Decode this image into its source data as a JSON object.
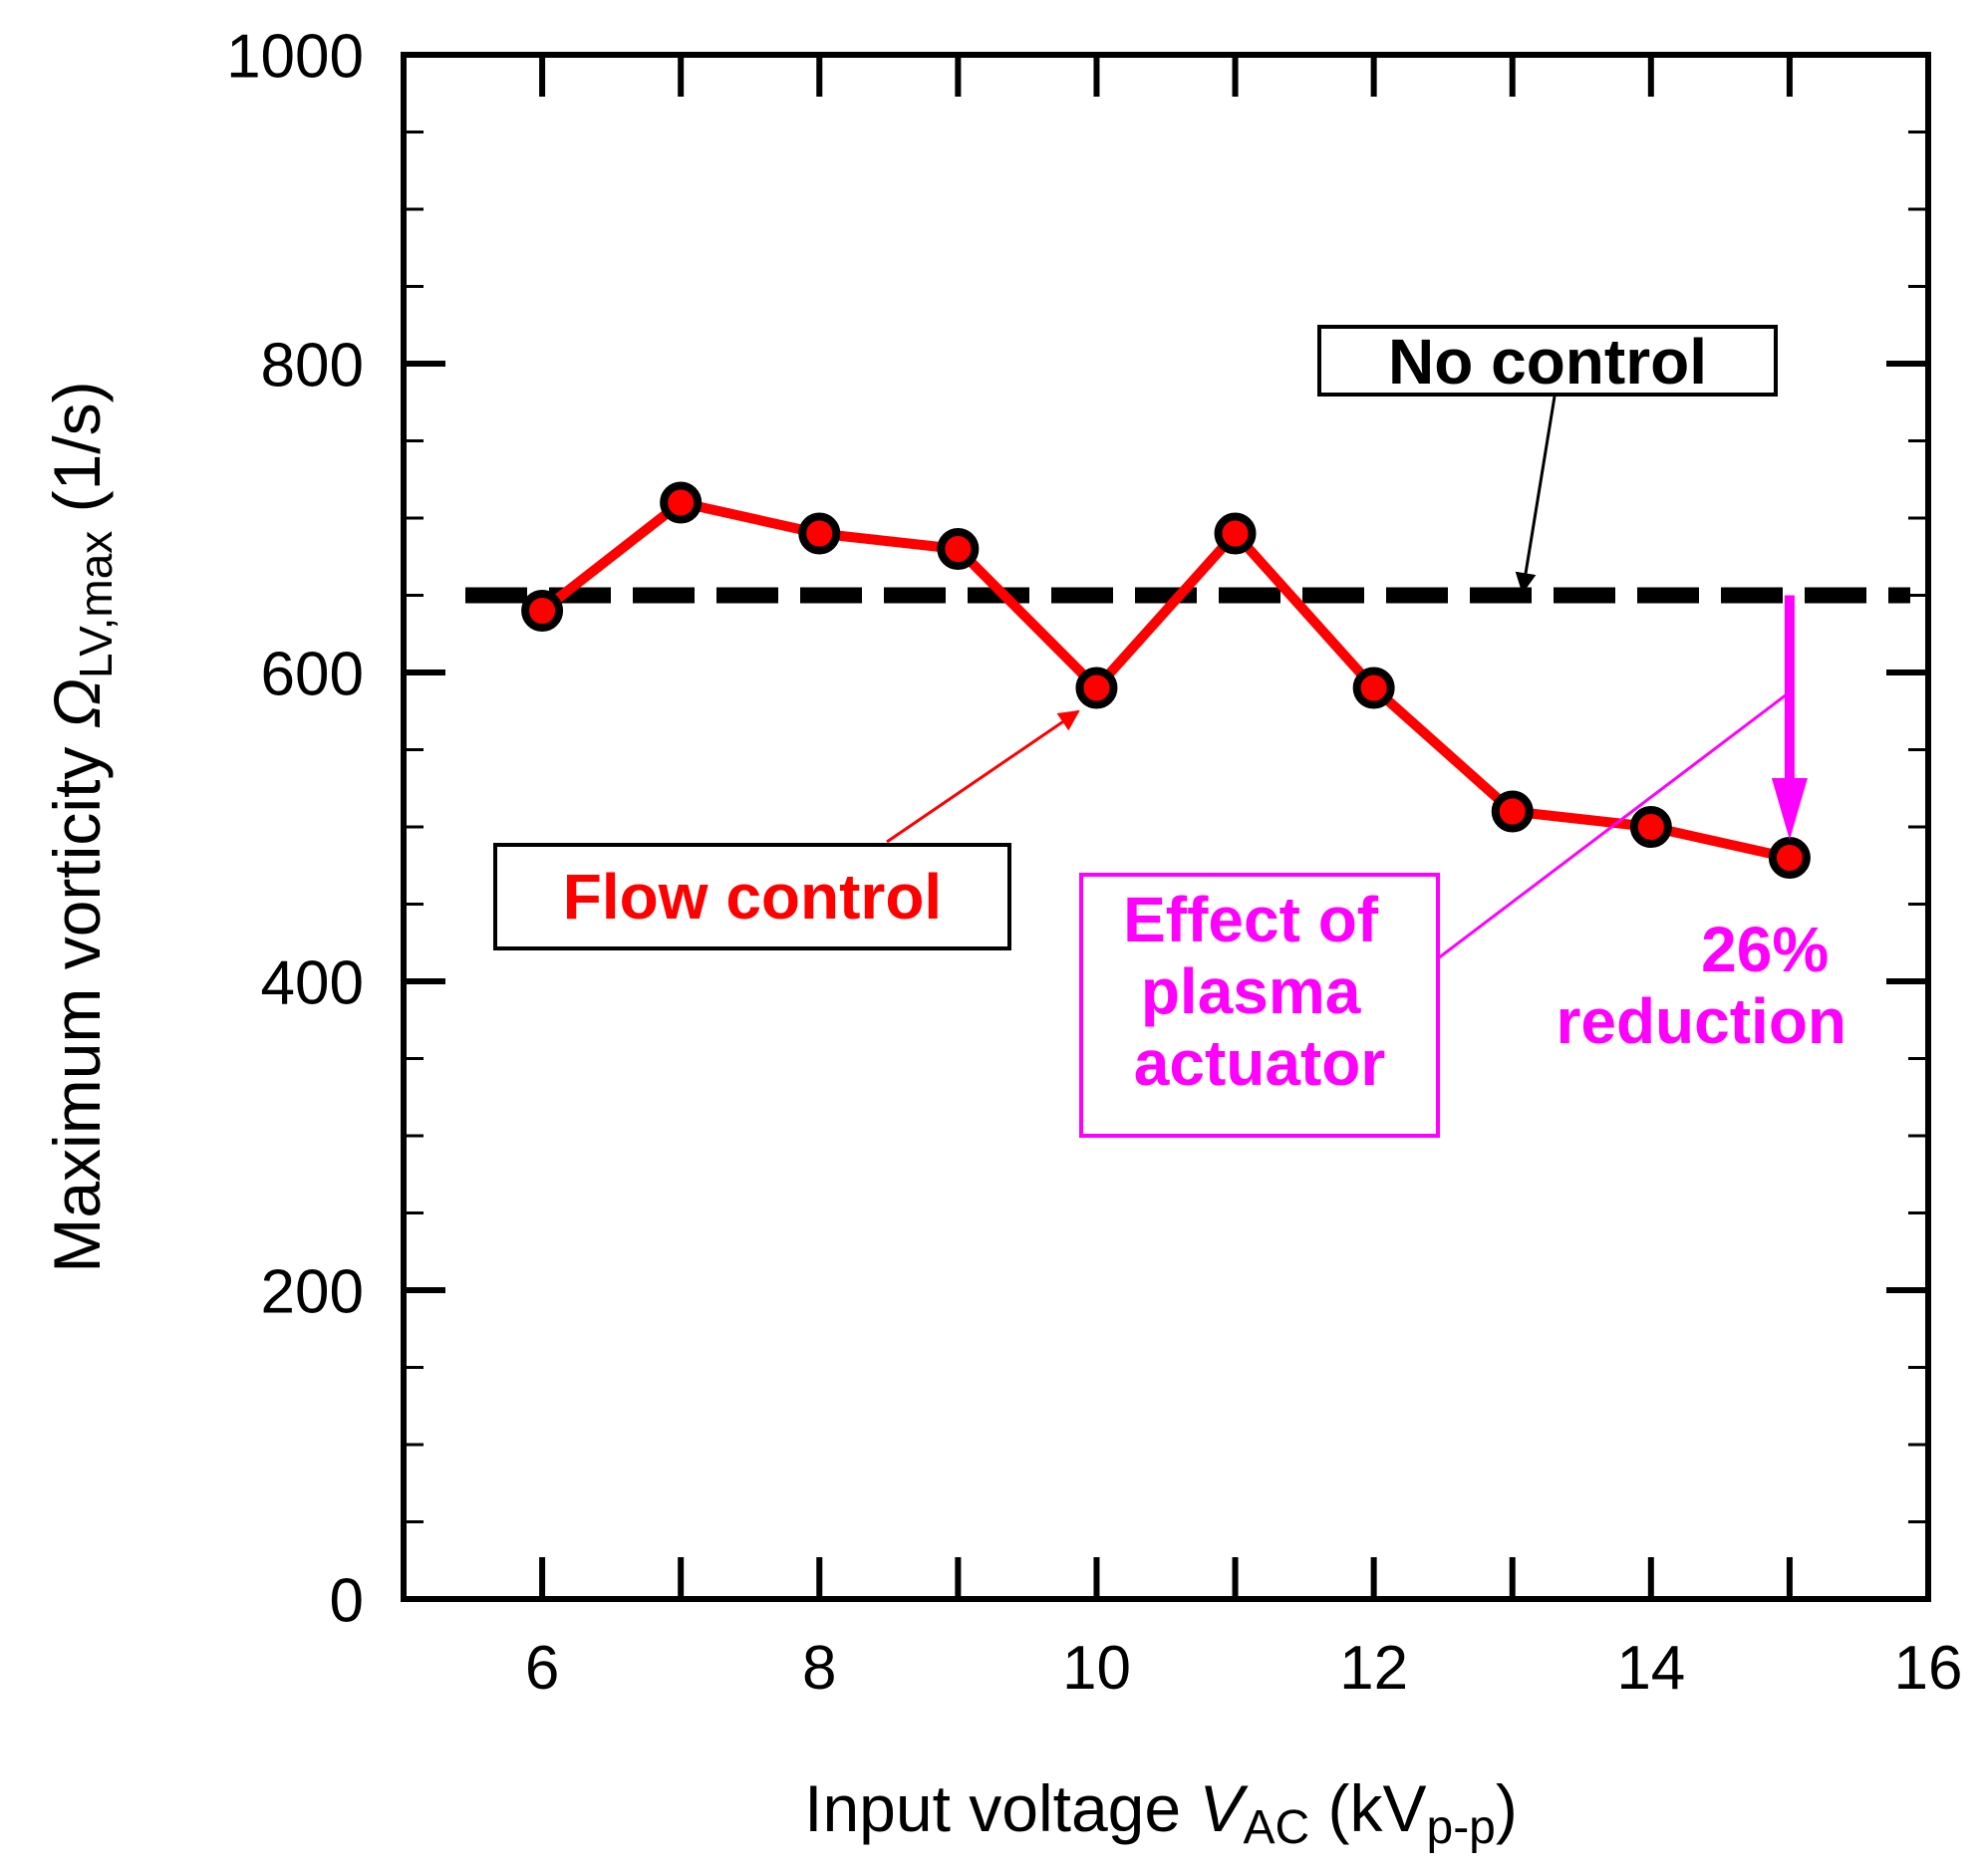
{
  "chart_data": {
    "type": "line",
    "title": "",
    "xlabel": {
      "prefix": "Input voltage ",
      "var": "V",
      "sub": "AC",
      "unit_open": " (kV",
      "unit_sub": "p-p",
      "unit_close": ")"
    },
    "ylabel": {
      "prefix": "Maximum vorticity ",
      "var": "Ω",
      "sub": "LV,max",
      "unit": " (1/s)"
    },
    "xlim": [
      5,
      16
    ],
    "ylim": [
      0,
      1000
    ],
    "x_ticks": [
      6,
      8,
      10,
      12,
      14,
      16
    ],
    "y_ticks": [
      0,
      200,
      400,
      600,
      800,
      1000
    ],
    "grid": false,
    "series": [
      {
        "name": "Flow control",
        "color": "#ff0000",
        "x": [
          6,
          7,
          8,
          9,
          10,
          11,
          12,
          13,
          14,
          15
        ],
        "y": [
          640,
          710,
          690,
          680,
          590,
          690,
          590,
          510,
          500,
          480
        ]
      }
    ],
    "reference_line": {
      "name": "No control",
      "y": 650,
      "color": "#000000",
      "style": "dashed"
    },
    "annotations": {
      "no_control_label": "No control",
      "flow_control_label": "Flow control",
      "effect_label": [
        "Effect of",
        "plasma",
        "actuator"
      ],
      "reduction_label": [
        "26%",
        "reduction"
      ],
      "accent_color": "#ff00ff"
    }
  }
}
